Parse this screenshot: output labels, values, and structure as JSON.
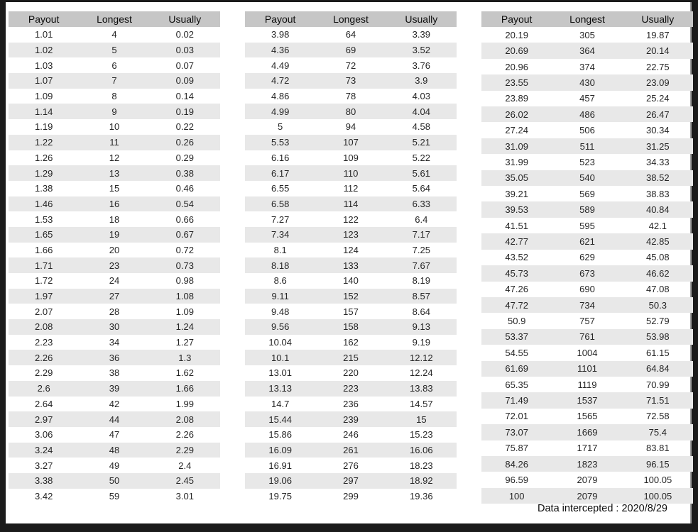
{
  "window": {
    "frame_color": "#1b1b1b",
    "page_background": "#ffffff",
    "header_background": "#c6c6c6",
    "stripe_background": "#e8e8e8",
    "edge_line_color": "#9b9b9b"
  },
  "columns": [
    "Payout",
    "Longest",
    "Usually"
  ],
  "tables": [
    {
      "rows": [
        [
          "1.01",
          "4",
          "0.02"
        ],
        [
          "1.02",
          "5",
          "0.03"
        ],
        [
          "1.03",
          "6",
          "0.07"
        ],
        [
          "1.07",
          "7",
          "0.09"
        ],
        [
          "1.09",
          "8",
          "0.14"
        ],
        [
          "1.14",
          "9",
          "0.19"
        ],
        [
          "1.19",
          "10",
          "0.22"
        ],
        [
          "1.22",
          "11",
          "0.26"
        ],
        [
          "1.26",
          "12",
          "0.29"
        ],
        [
          "1.29",
          "13",
          "0.38"
        ],
        [
          "1.38",
          "15",
          "0.46"
        ],
        [
          "1.46",
          "16",
          "0.54"
        ],
        [
          "1.53",
          "18",
          "0.66"
        ],
        [
          "1.65",
          "19",
          "0.67"
        ],
        [
          "1.66",
          "20",
          "0.72"
        ],
        [
          "1.71",
          "23",
          "0.73"
        ],
        [
          "1.72",
          "24",
          "0.98"
        ],
        [
          "1.97",
          "27",
          "1.08"
        ],
        [
          "2.07",
          "28",
          "1.09"
        ],
        [
          "2.08",
          "30",
          "1.24"
        ],
        [
          "2.23",
          "34",
          "1.27"
        ],
        [
          "2.26",
          "36",
          "1.3"
        ],
        [
          "2.29",
          "38",
          "1.62"
        ],
        [
          "2.6",
          "39",
          "1.66"
        ],
        [
          "2.64",
          "42",
          "1.99"
        ],
        [
          "2.97",
          "44",
          "2.08"
        ],
        [
          "3.06",
          "47",
          "2.26"
        ],
        [
          "3.24",
          "48",
          "2.29"
        ],
        [
          "3.27",
          "49",
          "2.4"
        ],
        [
          "3.38",
          "50",
          "2.45"
        ],
        [
          "3.42",
          "59",
          "3.01"
        ]
      ]
    },
    {
      "rows": [
        [
          "3.98",
          "64",
          "3.39"
        ],
        [
          "4.36",
          "69",
          "3.52"
        ],
        [
          "4.49",
          "72",
          "3.76"
        ],
        [
          "4.72",
          "73",
          "3.9"
        ],
        [
          "4.86",
          "78",
          "4.03"
        ],
        [
          "4.99",
          "80",
          "4.04"
        ],
        [
          "5",
          "94",
          "4.58"
        ],
        [
          "5.53",
          "107",
          "5.21"
        ],
        [
          "6.16",
          "109",
          "5.22"
        ],
        [
          "6.17",
          "110",
          "5.61"
        ],
        [
          "6.55",
          "112",
          "5.64"
        ],
        [
          "6.58",
          "114",
          "6.33"
        ],
        [
          "7.27",
          "122",
          "6.4"
        ],
        [
          "7.34",
          "123",
          "7.17"
        ],
        [
          "8.1",
          "124",
          "7.25"
        ],
        [
          "8.18",
          "133",
          "7.67"
        ],
        [
          "8.6",
          "140",
          "8.19"
        ],
        [
          "9.11",
          "152",
          "8.57"
        ],
        [
          "9.48",
          "157",
          "8.64"
        ],
        [
          "9.56",
          "158",
          "9.13"
        ],
        [
          "10.04",
          "162",
          "9.19"
        ],
        [
          "10.1",
          "215",
          "12.12"
        ],
        [
          "13.01",
          "220",
          "12.24"
        ],
        [
          "13.13",
          "223",
          "13.83"
        ],
        [
          "14.7",
          "236",
          "14.57"
        ],
        [
          "15.44",
          "239",
          "15"
        ],
        [
          "15.86",
          "246",
          "15.23"
        ],
        [
          "16.09",
          "261",
          "16.06"
        ],
        [
          "16.91",
          "276",
          "18.23"
        ],
        [
          "19.06",
          "297",
          "18.92"
        ],
        [
          "19.75",
          "299",
          "19.36"
        ]
      ]
    },
    {
      "rows": [
        [
          "20.19",
          "305",
          "19.87"
        ],
        [
          "20.69",
          "364",
          "20.14"
        ],
        [
          "20.96",
          "374",
          "22.75"
        ],
        [
          "23.55",
          "430",
          "23.09"
        ],
        [
          "23.89",
          "457",
          "25.24"
        ],
        [
          "26.02",
          "486",
          "26.47"
        ],
        [
          "27.24",
          "506",
          "30.34"
        ],
        [
          "31.09",
          "511",
          "31.25"
        ],
        [
          "31.99",
          "523",
          "34.33"
        ],
        [
          "35.05",
          "540",
          "38.52"
        ],
        [
          "39.21",
          "569",
          "38.83"
        ],
        [
          "39.53",
          "589",
          "40.84"
        ],
        [
          "41.51",
          "595",
          "42.1"
        ],
        [
          "42.77",
          "621",
          "42.85"
        ],
        [
          "43.52",
          "629",
          "45.08"
        ],
        [
          "45.73",
          "673",
          "46.62"
        ],
        [
          "47.26",
          "690",
          "47.08"
        ],
        [
          "47.72",
          "734",
          "50.3"
        ],
        [
          "50.9",
          "757",
          "52.79"
        ],
        [
          "53.37",
          "761",
          "53.98"
        ],
        [
          "54.55",
          "1004",
          "61.15"
        ],
        [
          "61.69",
          "1101",
          "64.84"
        ],
        [
          "65.35",
          "1119",
          "70.99"
        ],
        [
          "71.49",
          "1537",
          "71.51"
        ],
        [
          "72.01",
          "1565",
          "72.58"
        ],
        [
          "73.07",
          "1669",
          "75.4"
        ],
        [
          "75.87",
          "1717",
          "83.81"
        ],
        [
          "84.26",
          "1823",
          "96.15"
        ],
        [
          "96.59",
          "2079",
          "100.05"
        ],
        [
          "100",
          "2079",
          "100.05"
        ]
      ]
    }
  ],
  "footer": {
    "text": "Data intercepted : 2020/8/29"
  }
}
